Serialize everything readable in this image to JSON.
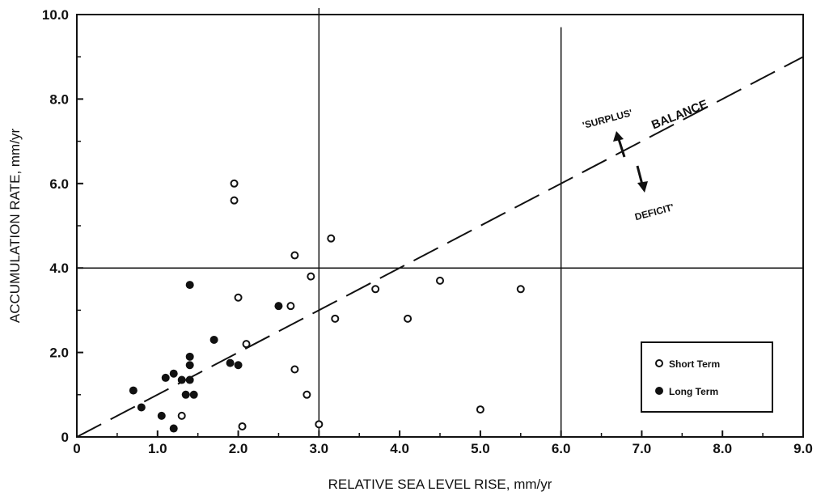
{
  "chart_data": {
    "type": "scatter",
    "xlabel": "RELATIVE SEA LEVEL RISE, mm/yr",
    "ylabel": "ACCUMULATION RATE, mm/yr",
    "xlim": [
      0,
      9
    ],
    "ylim": [
      0,
      10
    ],
    "x_ticks": [
      "0",
      "1.0",
      "2.0",
      "3.0",
      "4.0",
      "5.0",
      "6.0",
      "7.0",
      "8.0",
      "9.0"
    ],
    "y_ticks": [
      "0",
      "2.0",
      "4.0",
      "6.0",
      "8.0",
      "10.0"
    ],
    "grid": false,
    "legend_position": "bottom-right",
    "reference_lines": {
      "vertical_x": [
        3.0,
        6.0
      ],
      "horizontal_y": [
        4.0
      ]
    },
    "balance_line": {
      "label": "BALANCE",
      "from": [
        0,
        0
      ],
      "to": [
        9,
        9
      ],
      "style": "dashed"
    },
    "annotations": {
      "surplus": "'SURPLUS'",
      "deficit": "DEFICIT'"
    },
    "series": [
      {
        "name": "Short Term",
        "marker": "open-circle",
        "points": [
          [
            1.95,
            6.0
          ],
          [
            1.95,
            5.6
          ],
          [
            2.7,
            4.3
          ],
          [
            3.15,
            4.7
          ],
          [
            2.0,
            3.3
          ],
          [
            2.9,
            3.8
          ],
          [
            2.65,
            3.1
          ],
          [
            3.2,
            2.8
          ],
          [
            3.7,
            3.5
          ],
          [
            4.5,
            3.7
          ],
          [
            5.5,
            3.5
          ],
          [
            4.1,
            2.8
          ],
          [
            2.1,
            2.2
          ],
          [
            2.7,
            1.6
          ],
          [
            2.85,
            1.0
          ],
          [
            2.05,
            0.25
          ],
          [
            3.0,
            0.3
          ],
          [
            5.0,
            0.65
          ],
          [
            1.3,
            0.5
          ]
        ]
      },
      {
        "name": "Long Term",
        "marker": "filled-circle",
        "points": [
          [
            0.7,
            1.1
          ],
          [
            0.8,
            0.7
          ],
          [
            1.05,
            0.5
          ],
          [
            1.2,
            0.2
          ],
          [
            1.1,
            1.4
          ],
          [
            1.2,
            1.5
          ],
          [
            1.3,
            1.35
          ],
          [
            1.4,
            1.35
          ],
          [
            1.4,
            1.9
          ],
          [
            1.4,
            1.7
          ],
          [
            1.35,
            1.0
          ],
          [
            1.45,
            1.0
          ],
          [
            1.4,
            3.6
          ],
          [
            1.7,
            2.3
          ],
          [
            1.9,
            1.75
          ],
          [
            2.0,
            1.7
          ],
          [
            2.5,
            3.1
          ]
        ]
      }
    ]
  }
}
